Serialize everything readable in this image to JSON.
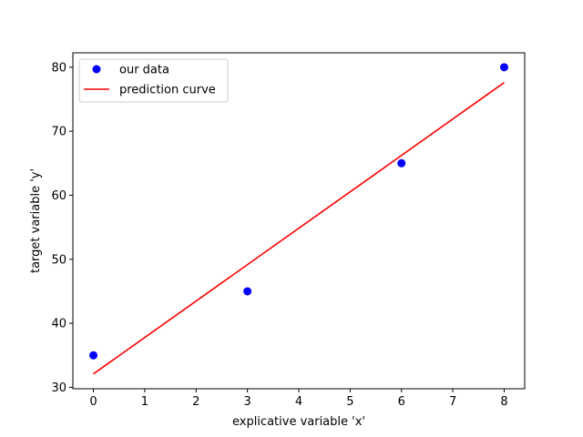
{
  "chart_data": {
    "type": "scatter",
    "title": "",
    "xlabel": "explicative variable 'x'",
    "ylabel": "target variable 'y'",
    "xlim": [
      -0.4,
      8.4
    ],
    "ylim": [
      29.78,
      82.25
    ],
    "x_ticks": [
      0,
      1,
      2,
      3,
      4,
      5,
      6,
      7,
      8
    ],
    "y_ticks": [
      30,
      40,
      50,
      60,
      70,
      80
    ],
    "grid": false,
    "legend_position": "top-left",
    "series": [
      {
        "name": "our data",
        "type": "scatter",
        "color": "#0000ff",
        "x": [
          0,
          3,
          6,
          8
        ],
        "y": [
          35,
          45,
          65,
          80
        ]
      },
      {
        "name": "prediction curve",
        "type": "line",
        "color": "#ff0000",
        "x": [
          0,
          8
        ],
        "y": [
          32.1,
          77.6
        ]
      }
    ]
  }
}
